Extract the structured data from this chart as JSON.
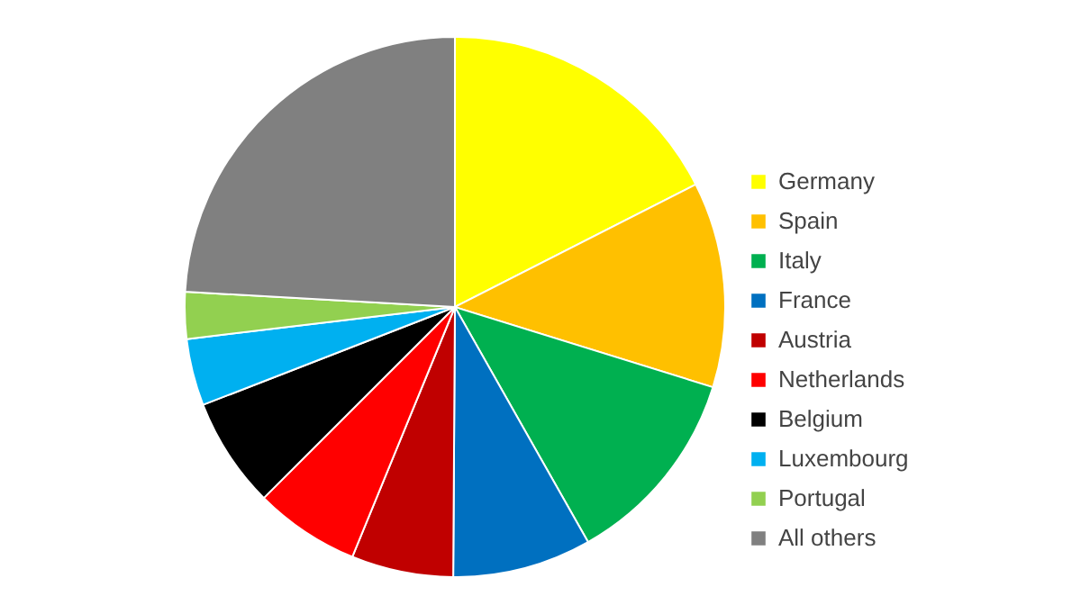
{
  "chart_data": {
    "type": "pie",
    "categories": [
      "Germany",
      "Spain",
      "Italy",
      "France",
      "Austria",
      "Netherlands",
      "Belgium",
      "Luxembourg",
      "Portugal",
      "All others"
    ],
    "values": [
      17.5,
      12.3,
      12.0,
      8.3,
      6.1,
      6.3,
      6.6,
      4.0,
      2.8,
      24.1
    ],
    "colors": [
      "#ffff00",
      "#ffc000",
      "#00b050",
      "#0070c0",
      "#c00000",
      "#ff0000",
      "#000000",
      "#00b0f0",
      "#92d050",
      "#808080"
    ],
    "legend": "right"
  }
}
